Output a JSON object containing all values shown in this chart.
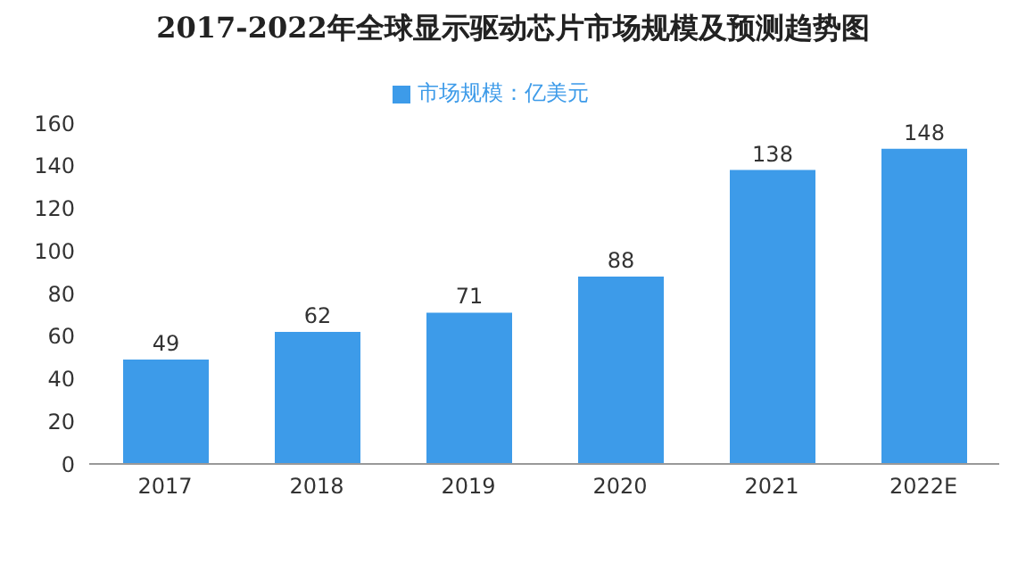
{
  "chart_data": {
    "type": "bar",
    "title": "2017-2022年全球显示驱动芯片市场规模及预测趋势图",
    "categories": [
      "2017",
      "2018",
      "2019",
      "2020",
      "2021",
      "2022E"
    ],
    "series": [
      {
        "name": "市场规模：亿美元",
        "color": "#3d9be9",
        "values": [
          49,
          62,
          71,
          88,
          138,
          148
        ]
      }
    ],
    "ylim": [
      0,
      160
    ],
    "yticks": [
      0,
      20,
      40,
      60,
      80,
      100,
      120,
      140,
      160
    ],
    "data_labels": true,
    "legend": "top",
    "grid": false
  }
}
